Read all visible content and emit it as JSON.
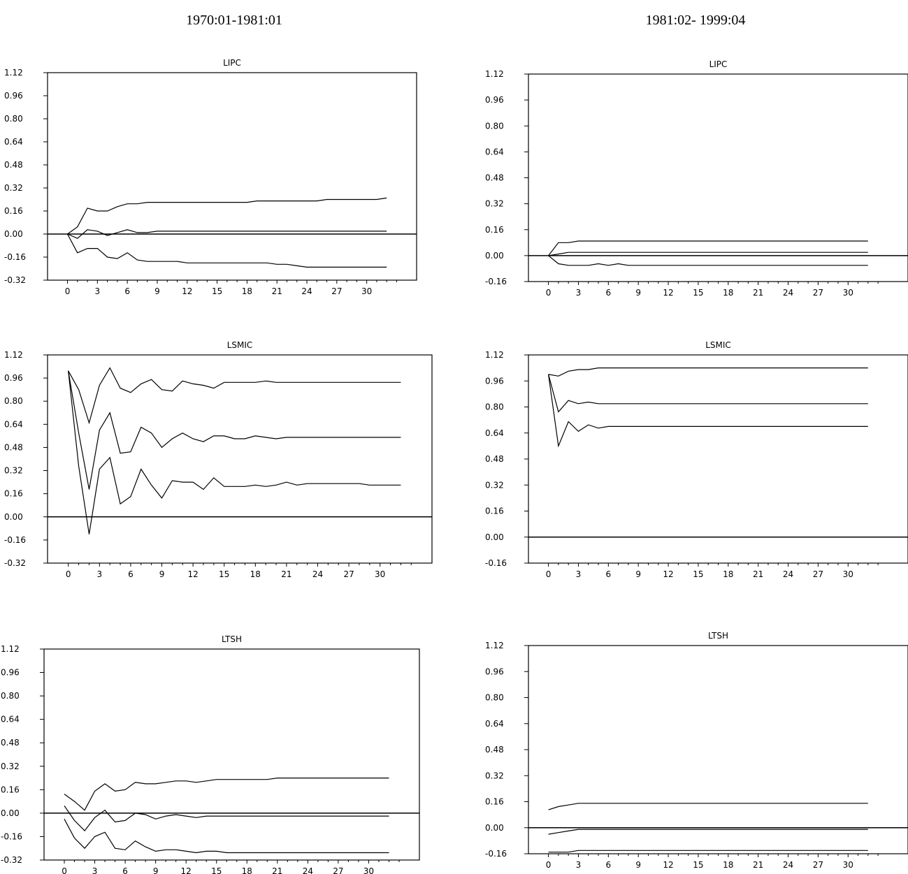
{
  "column_titles": [
    "1970:01-1981:01",
    "1981:02- 1999:04"
  ],
  "chart_data": [
    {
      "type": "line",
      "title": "LIPC",
      "column": 0,
      "ylim": [
        -0.32,
        1.12
      ],
      "yticks": [
        -0.32,
        -0.16,
        0.0,
        0.16,
        0.32,
        0.48,
        0.64,
        0.8,
        0.96,
        1.12
      ],
      "ytick_labels": [
        "-0.32",
        "-0.16",
        "0.00",
        "0.16",
        "0.32",
        "0.48",
        "0.64",
        "0.80",
        "0.96",
        "1.12"
      ],
      "xlim": [
        -2,
        35
      ],
      "xticks": [
        0,
        3,
        6,
        9,
        12,
        15,
        18,
        21,
        24,
        27,
        30
      ],
      "x": [
        0,
        1,
        2,
        3,
        4,
        5,
        6,
        7,
        8,
        9,
        10,
        11,
        12,
        13,
        14,
        15,
        16,
        17,
        18,
        19,
        20,
        21,
        22,
        23,
        24,
        25,
        26,
        27,
        28,
        29,
        30,
        31,
        32
      ],
      "series": [
        {
          "values": [
            0,
            0.05,
            0.18,
            0.16,
            0.16,
            0.19,
            0.21,
            0.21,
            0.22,
            0.22,
            0.22,
            0.22,
            0.22,
            0.22,
            0.22,
            0.22,
            0.22,
            0.22,
            0.22,
            0.23,
            0.23,
            0.23,
            0.23,
            0.23,
            0.23,
            0.23,
            0.24,
            0.24,
            0.24,
            0.24,
            0.24,
            0.24,
            0.25
          ]
        },
        {
          "values": [
            0,
            -0.03,
            0.03,
            0.02,
            -0.01,
            0.01,
            0.03,
            0.01,
            0.01,
            0.02,
            0.02,
            0.02,
            0.02,
            0.02,
            0.02,
            0.02,
            0.02,
            0.02,
            0.02,
            0.02,
            0.02,
            0.02,
            0.02,
            0.02,
            0.02,
            0.02,
            0.02,
            0.02,
            0.02,
            0.02,
            0.02,
            0.02,
            0.02
          ]
        },
        {
          "values": [
            0,
            -0.13,
            -0.1,
            -0.1,
            -0.16,
            -0.17,
            -0.13,
            -0.18,
            -0.19,
            -0.19,
            -0.19,
            -0.19,
            -0.2,
            -0.2,
            -0.2,
            -0.2,
            -0.2,
            -0.2,
            -0.2,
            -0.2,
            -0.2,
            -0.21,
            -0.21,
            -0.22,
            -0.23,
            -0.23,
            -0.23,
            -0.23,
            -0.23,
            -0.23,
            -0.23,
            -0.23,
            -0.23
          ]
        }
      ]
    },
    {
      "type": "line",
      "title": "LSMIC",
      "column": 0,
      "ylim": [
        -0.32,
        1.12
      ],
      "yticks": [
        -0.32,
        -0.16,
        0.0,
        0.16,
        0.32,
        0.48,
        0.64,
        0.8,
        0.96,
        1.12
      ],
      "ytick_labels": [
        "-0.32",
        "-0.16",
        "0.00",
        "0.16",
        "0.32",
        "0.48",
        "0.64",
        "0.80",
        "0.96",
        "1.12"
      ],
      "xlim": [
        -2,
        35
      ],
      "xticks": [
        0,
        3,
        6,
        9,
        12,
        15,
        18,
        21,
        24,
        27,
        30
      ],
      "x": [
        0,
        1,
        2,
        3,
        4,
        5,
        6,
        7,
        8,
        9,
        10,
        11,
        12,
        13,
        14,
        15,
        16,
        17,
        18,
        19,
        20,
        21,
        22,
        23,
        24,
        25,
        26,
        27,
        28,
        29,
        30,
        31,
        32
      ],
      "series": [
        {
          "values": [
            1.01,
            0.88,
            0.65,
            0.91,
            1.03,
            0.89,
            0.86,
            0.92,
            0.95,
            0.88,
            0.87,
            0.94,
            0.92,
            0.91,
            0.89,
            0.93,
            0.93,
            0.93,
            0.93,
            0.94,
            0.93,
            0.93,
            0.93,
            0.93,
            0.93,
            0.93,
            0.93,
            0.93,
            0.93,
            0.93,
            0.93,
            0.93,
            0.93
          ]
        },
        {
          "values": [
            1.01,
            0.58,
            0.19,
            0.6,
            0.72,
            0.44,
            0.45,
            0.62,
            0.58,
            0.48,
            0.54,
            0.58,
            0.54,
            0.52,
            0.56,
            0.56,
            0.54,
            0.54,
            0.56,
            0.55,
            0.54,
            0.55,
            0.55,
            0.55,
            0.55,
            0.55,
            0.55,
            0.55,
            0.55,
            0.55,
            0.55,
            0.55,
            0.55
          ]
        },
        {
          "values": [
            1.01,
            0.35,
            -0.12,
            0.33,
            0.41,
            0.09,
            0.14,
            0.33,
            0.22,
            0.13,
            0.25,
            0.24,
            0.24,
            0.19,
            0.27,
            0.21,
            0.21,
            0.21,
            0.22,
            0.21,
            0.22,
            0.24,
            0.22,
            0.23,
            0.23,
            0.23,
            0.23,
            0.23,
            0.23,
            0.22,
            0.22,
            0.22,
            0.22
          ]
        }
      ]
    },
    {
      "type": "line",
      "title": "LTSH",
      "column": 0,
      "ylim": [
        -0.32,
        1.12
      ],
      "yticks": [
        -0.32,
        -0.16,
        0.0,
        0.16,
        0.32,
        0.48,
        0.64,
        0.8,
        0.96,
        1.12
      ],
      "ytick_labels": [
        "-0.32",
        "-0.16",
        "0.00",
        "0.16",
        "0.32",
        "0.48",
        "0.64",
        "0.80",
        "0.96",
        "1.12"
      ],
      "xlim": [
        -2,
        35
      ],
      "xticks": [
        0,
        3,
        6,
        9,
        12,
        15,
        18,
        21,
        24,
        27,
        30
      ],
      "x": [
        0,
        1,
        2,
        3,
        4,
        5,
        6,
        7,
        8,
        9,
        10,
        11,
        12,
        13,
        14,
        15,
        16,
        17,
        18,
        19,
        20,
        21,
        22,
        23,
        24,
        25,
        26,
        27,
        28,
        29,
        30,
        31,
        32
      ],
      "series": [
        {
          "values": [
            0.13,
            0.08,
            0.02,
            0.15,
            0.2,
            0.15,
            0.16,
            0.21,
            0.2,
            0.2,
            0.21,
            0.22,
            0.22,
            0.21,
            0.22,
            0.23,
            0.23,
            0.23,
            0.23,
            0.23,
            0.23,
            0.24,
            0.24,
            0.24,
            0.24,
            0.24,
            0.24,
            0.24,
            0.24,
            0.24,
            0.24,
            0.24,
            0.24
          ]
        },
        {
          "values": [
            0.05,
            -0.05,
            -0.12,
            -0.03,
            0.02,
            -0.06,
            -0.05,
            0.0,
            -0.01,
            -0.04,
            -0.02,
            -0.01,
            -0.02,
            -0.03,
            -0.02,
            -0.02,
            -0.02,
            -0.02,
            -0.02,
            -0.02,
            -0.02,
            -0.02,
            -0.02,
            -0.02,
            -0.02,
            -0.02,
            -0.02,
            -0.02,
            -0.02,
            -0.02,
            -0.02,
            -0.02,
            -0.02
          ]
        },
        {
          "values": [
            -0.04,
            -0.17,
            -0.24,
            -0.16,
            -0.13,
            -0.24,
            -0.25,
            -0.19,
            -0.23,
            -0.26,
            -0.25,
            -0.25,
            -0.26,
            -0.27,
            -0.26,
            -0.26,
            -0.27,
            -0.27,
            -0.27,
            -0.27,
            -0.27,
            -0.27,
            -0.27,
            -0.27,
            -0.27,
            -0.27,
            -0.27,
            -0.27,
            -0.27,
            -0.27,
            -0.27,
            -0.27,
            -0.27
          ]
        }
      ]
    },
    {
      "type": "line",
      "title": "LIPC",
      "column": 1,
      "ylim": [
        -0.16,
        1.12
      ],
      "yticks": [
        -0.16,
        0.0,
        0.16,
        0.32,
        0.48,
        0.64,
        0.8,
        0.96,
        1.12
      ],
      "ytick_labels": [
        "-0.16",
        "0.00",
        "0.16",
        "0.32",
        "0.48",
        "0.64",
        "0.80",
        "0.96",
        "1.12"
      ],
      "xlim": [
        -2,
        36
      ],
      "xticks": [
        0,
        3,
        6,
        9,
        12,
        15,
        18,
        21,
        24,
        27,
        30
      ],
      "x": [
        0,
        1,
        2,
        3,
        4,
        5,
        6,
        7,
        8,
        9,
        10,
        11,
        12,
        13,
        14,
        15,
        16,
        17,
        18,
        19,
        20,
        21,
        22,
        23,
        24,
        25,
        26,
        27,
        28,
        29,
        30,
        31,
        32
      ],
      "series": [
        {
          "values": [
            0,
            0.08,
            0.08,
            0.09,
            0.09,
            0.09,
            0.09,
            0.09,
            0.09,
            0.09,
            0.09,
            0.09,
            0.09,
            0.09,
            0.09,
            0.09,
            0.09,
            0.09,
            0.09,
            0.09,
            0.09,
            0.09,
            0.09,
            0.09,
            0.09,
            0.09,
            0.09,
            0.09,
            0.09,
            0.09,
            0.09,
            0.09,
            0.09
          ]
        },
        {
          "values": [
            0,
            0.01,
            0.02,
            0.02,
            0.02,
            0.02,
            0.02,
            0.02,
            0.02,
            0.02,
            0.02,
            0.02,
            0.02,
            0.02,
            0.02,
            0.02,
            0.02,
            0.02,
            0.02,
            0.02,
            0.02,
            0.02,
            0.02,
            0.02,
            0.02,
            0.02,
            0.02,
            0.02,
            0.02,
            0.02,
            0.02,
            0.02,
            0.02
          ]
        },
        {
          "values": [
            0,
            -0.05,
            -0.06,
            -0.06,
            -0.06,
            -0.05,
            -0.06,
            -0.05,
            -0.06,
            -0.06,
            -0.06,
            -0.06,
            -0.06,
            -0.06,
            -0.06,
            -0.06,
            -0.06,
            -0.06,
            -0.06,
            -0.06,
            -0.06,
            -0.06,
            -0.06,
            -0.06,
            -0.06,
            -0.06,
            -0.06,
            -0.06,
            -0.06,
            -0.06,
            -0.06,
            -0.06,
            -0.06
          ]
        }
      ]
    },
    {
      "type": "line",
      "title": "LSMIC",
      "column": 1,
      "ylim": [
        -0.16,
        1.12
      ],
      "yticks": [
        -0.16,
        0.0,
        0.16,
        0.32,
        0.48,
        0.64,
        0.8,
        0.96,
        1.12
      ],
      "ytick_labels": [
        "-0.16",
        "0.00",
        "0.16",
        "0.32",
        "0.48",
        "0.64",
        "0.80",
        "0.96",
        "1.12"
      ],
      "xlim": [
        -2,
        36
      ],
      "xticks": [
        0,
        3,
        6,
        9,
        12,
        15,
        18,
        21,
        24,
        27,
        30
      ],
      "x": [
        0,
        1,
        2,
        3,
        4,
        5,
        6,
        7,
        8,
        9,
        10,
        11,
        12,
        13,
        14,
        15,
        16,
        17,
        18,
        19,
        20,
        21,
        22,
        23,
        24,
        25,
        26,
        27,
        28,
        29,
        30,
        31,
        32
      ],
      "series": [
        {
          "values": [
            1.0,
            0.99,
            1.02,
            1.03,
            1.03,
            1.04,
            1.04,
            1.04,
            1.04,
            1.04,
            1.04,
            1.04,
            1.04,
            1.04,
            1.04,
            1.04,
            1.04,
            1.04,
            1.04,
            1.04,
            1.04,
            1.04,
            1.04,
            1.04,
            1.04,
            1.04,
            1.04,
            1.04,
            1.04,
            1.04,
            1.04,
            1.04,
            1.04
          ]
        },
        {
          "values": [
            1.0,
            0.77,
            0.84,
            0.82,
            0.83,
            0.82,
            0.82,
            0.82,
            0.82,
            0.82,
            0.82,
            0.82,
            0.82,
            0.82,
            0.82,
            0.82,
            0.82,
            0.82,
            0.82,
            0.82,
            0.82,
            0.82,
            0.82,
            0.82,
            0.82,
            0.82,
            0.82,
            0.82,
            0.82,
            0.82,
            0.82,
            0.82,
            0.82
          ]
        },
        {
          "values": [
            1.0,
            0.56,
            0.71,
            0.65,
            0.69,
            0.67,
            0.68,
            0.68,
            0.68,
            0.68,
            0.68,
            0.68,
            0.68,
            0.68,
            0.68,
            0.68,
            0.68,
            0.68,
            0.68,
            0.68,
            0.68,
            0.68,
            0.68,
            0.68,
            0.68,
            0.68,
            0.68,
            0.68,
            0.68,
            0.68,
            0.68,
            0.68,
            0.68
          ]
        }
      ]
    },
    {
      "type": "line",
      "title": "LTSH",
      "column": 1,
      "ylim": [
        -0.16,
        1.12
      ],
      "yticks": [
        -0.16,
        0.0,
        0.16,
        0.32,
        0.48,
        0.64,
        0.8,
        0.96,
        1.12
      ],
      "ytick_labels": [
        "-0.16",
        "0.00",
        "0.16",
        "0.32",
        "0.48",
        "0.64",
        "0.80",
        "0.96",
        "1.12"
      ],
      "xlim": [
        -2,
        36
      ],
      "xticks": [
        0,
        3,
        6,
        9,
        12,
        15,
        18,
        21,
        24,
        27,
        30
      ],
      "x": [
        0,
        1,
        2,
        3,
        4,
        5,
        6,
        7,
        8,
        9,
        10,
        11,
        12,
        13,
        14,
        15,
        16,
        17,
        18,
        19,
        20,
        21,
        22,
        23,
        24,
        25,
        26,
        27,
        28,
        29,
        30,
        31,
        32
      ],
      "series": [
        {
          "values": [
            0.11,
            0.13,
            0.14,
            0.15,
            0.15,
            0.15,
            0.15,
            0.15,
            0.15,
            0.15,
            0.15,
            0.15,
            0.15,
            0.15,
            0.15,
            0.15,
            0.15,
            0.15,
            0.15,
            0.15,
            0.15,
            0.15,
            0.15,
            0.15,
            0.15,
            0.15,
            0.15,
            0.15,
            0.15,
            0.15,
            0.15,
            0.15,
            0.15
          ]
        },
        {
          "values": [
            -0.04,
            -0.03,
            -0.02,
            -0.01,
            -0.01,
            -0.01,
            -0.01,
            -0.01,
            -0.01,
            -0.01,
            -0.01,
            -0.01,
            -0.01,
            -0.01,
            -0.01,
            -0.01,
            -0.01,
            -0.01,
            -0.01,
            -0.01,
            -0.01,
            -0.01,
            -0.01,
            -0.01,
            -0.01,
            -0.01,
            -0.01,
            -0.01,
            -0.01,
            -0.01,
            -0.01,
            -0.01,
            -0.01
          ]
        },
        {
          "values": [
            -0.15,
            -0.15,
            -0.15,
            -0.14,
            -0.14,
            -0.14,
            -0.14,
            -0.14,
            -0.14,
            -0.14,
            -0.14,
            -0.14,
            -0.14,
            -0.14,
            -0.14,
            -0.14,
            -0.14,
            -0.14,
            -0.14,
            -0.14,
            -0.14,
            -0.14,
            -0.14,
            -0.14,
            -0.14,
            -0.14,
            -0.14,
            -0.14,
            -0.14,
            -0.14,
            -0.14,
            -0.14,
            -0.14
          ]
        }
      ]
    }
  ]
}
